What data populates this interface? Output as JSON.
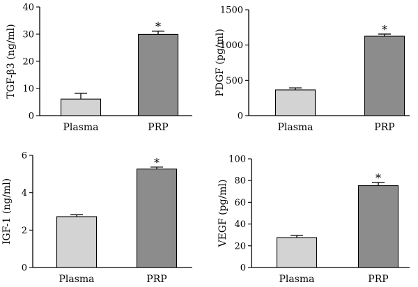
{
  "chart_data": [
    {
      "type": "bar",
      "ylabel": "TGF-β3 (ng/ml)",
      "categories": [
        "Plasma",
        "PRP"
      ],
      "values": [
        6.1,
        29.9
      ],
      "errors": [
        2.1,
        1.2
      ],
      "ylim": [
        0,
        40
      ],
      "yticks": [
        0,
        10,
        20,
        30,
        40
      ],
      "annotations": [
        "",
        "*"
      ],
      "colors": [
        "#d3d3d3",
        "#8c8c8c"
      ]
    },
    {
      "type": "bar",
      "ylabel": "PDGF (pg/ml)",
      "categories": [
        "Plasma",
        "PRP"
      ],
      "values": [
        365,
        1125
      ],
      "errors": [
        28,
        30
      ],
      "ylim": [
        0,
        1500
      ],
      "yticks": [
        0,
        500,
        1000,
        1500
      ],
      "annotations": [
        "",
        "*"
      ],
      "colors": [
        "#d3d3d3",
        "#8c8c8c"
      ]
    },
    {
      "type": "bar",
      "ylabel": "IGF-1 (ng/ml)",
      "categories": [
        "Plasma",
        "PRP"
      ],
      "values": [
        2.72,
        5.27
      ],
      "errors": [
        0.1,
        0.1
      ],
      "ylim": [
        0,
        6
      ],
      "yticks": [
        0,
        2,
        4,
        6
      ],
      "annotations": [
        "",
        "*"
      ],
      "colors": [
        "#d3d3d3",
        "#8c8c8c"
      ]
    },
    {
      "type": "bar",
      "ylabel": "VEGF (pg/ml)",
      "categories": [
        "Plasma",
        "PRP"
      ],
      "values": [
        27.5,
        75.3
      ],
      "errors": [
        2.0,
        3.0
      ],
      "ylim": [
        0,
        100
      ],
      "yticks": [
        0,
        20,
        40,
        60,
        80,
        100
      ],
      "annotations": [
        "",
        "*"
      ],
      "colors": [
        "#d3d3d3",
        "#8c8c8c"
      ]
    }
  ]
}
